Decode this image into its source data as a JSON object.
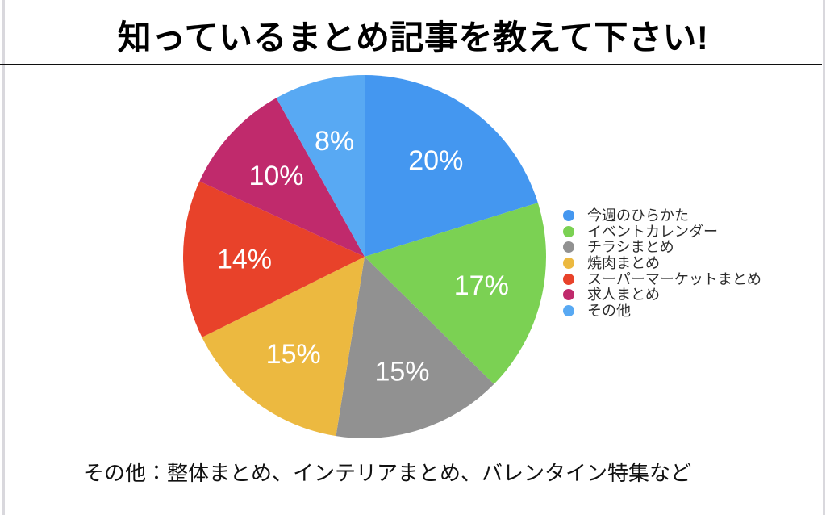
{
  "ui": {
    "title": "知っているまとめ記事を教えて下さい!",
    "footnote": "その他：整体まとめ、インテリアまとめ、バレンタイン特集など"
  },
  "chart_data": {
    "type": "pie",
    "title": "知っているまとめ記事を教えて下さい!",
    "unit": "%",
    "start_angle_deg": 0,
    "direction": "clockwise",
    "legend_position": "right",
    "labels_inside": true,
    "label_text_color": "#ffffff",
    "slices": [
      {
        "label": "今週のひらかた",
        "value": 20,
        "percent_label": "20%",
        "color": "#4497F0"
      },
      {
        "label": "イベントカレンダー",
        "value": 17,
        "percent_label": "17%",
        "color": "#7BD153"
      },
      {
        "label": "チラシまとめ",
        "value": 15,
        "percent_label": "15%",
        "color": "#919191"
      },
      {
        "label": "焼肉まとめ",
        "value": 15,
        "percent_label": "15%",
        "color": "#ECB940"
      },
      {
        "label": "スーパーマーケットまとめ",
        "value": 14,
        "percent_label": "14%",
        "color": "#E8422A"
      },
      {
        "label": "求人まとめ",
        "value": 10,
        "percent_label": "10%",
        "color": "#C02A6C"
      },
      {
        "label": "その他",
        "value": 8,
        "percent_label": "8%",
        "color": "#58A9F3"
      }
    ],
    "annotation": "その他：整体まとめ、インテリアまとめ、バレンタイン特集など"
  }
}
